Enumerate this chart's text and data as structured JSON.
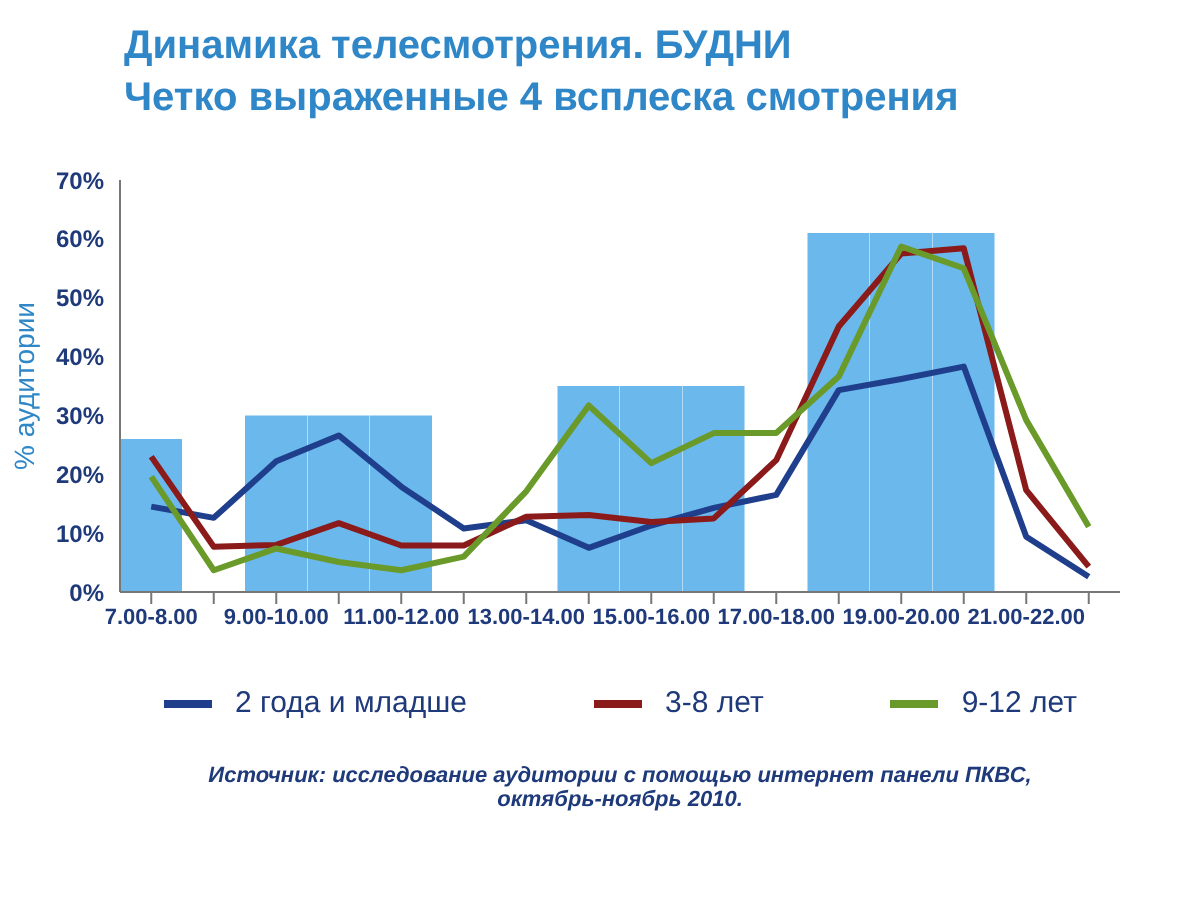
{
  "chart_data": {
    "type": "line",
    "title": "Динамика телесмотрения. БУДНИ",
    "subtitle": "Четко выраженные 4 всплеска смотрения",
    "ylabel": "% аудитории",
    "categories": [
      "7.00-8.00",
      null,
      "9.00-10.00",
      null,
      "11.00-12.00",
      null,
      "13.00-14.00",
      null,
      "15.00-16.00",
      null,
      "17.00-18.00",
      null,
      "19.00-20.00",
      null,
      "21.00-22.00",
      null
    ],
    "series": [
      {
        "type": "bar",
        "color": "#6bb8ec",
        "values": [
          26,
          null,
          30,
          30,
          30,
          null,
          null,
          35,
          35,
          35,
          null,
          61,
          61,
          61,
          null,
          null
        ]
      },
      {
        "name": "2 года и младше",
        "color": "#1f3f8c",
        "values": [
          14.5,
          12.6,
          22.2,
          26.6,
          17.9,
          10.8,
          12.2,
          7.5,
          11.3,
          14.3,
          16.5,
          34.3,
          36.2,
          38.3,
          9.4,
          2.6
        ]
      },
      {
        "name": "3-8 лет",
        "color": "#8b1a1a",
        "values": [
          23,
          7.7,
          8,
          11.7,
          7.9,
          7.9,
          12.8,
          13.1,
          11.9,
          12.5,
          22.4,
          45.1,
          57.5,
          58.4,
          17.3,
          4.3
        ]
      },
      {
        "name": "9-12 лет",
        "color": "#6a9a2a",
        "values": [
          19.6,
          3.7,
          7.4,
          5.1,
          3.7,
          6,
          17.1,
          31.7,
          21.9,
          27,
          27,
          36.6,
          58.7,
          55,
          29.2,
          11.1
        ]
      }
    ],
    "ylim": [
      0,
      70
    ],
    "yticks": [
      {
        "value": 0,
        "label": "0%"
      },
      {
        "value": 10,
        "label": "10%"
      },
      {
        "value": 20,
        "label": "20%"
      },
      {
        "value": 30,
        "label": "30%"
      },
      {
        "value": 40,
        "label": "40%"
      },
      {
        "value": 50,
        "label": "50%"
      },
      {
        "value": 60,
        "label": "60%"
      },
      {
        "value": 70,
        "label": "70%"
      }
    ],
    "legend": "bottom",
    "marker": "none",
    "line_style": "solid",
    "grid": false,
    "annotations": [
      "Источник: исследование аудитории с помощью интернет панели ПКВС, октябрь-ноябрь 2010."
    ]
  }
}
